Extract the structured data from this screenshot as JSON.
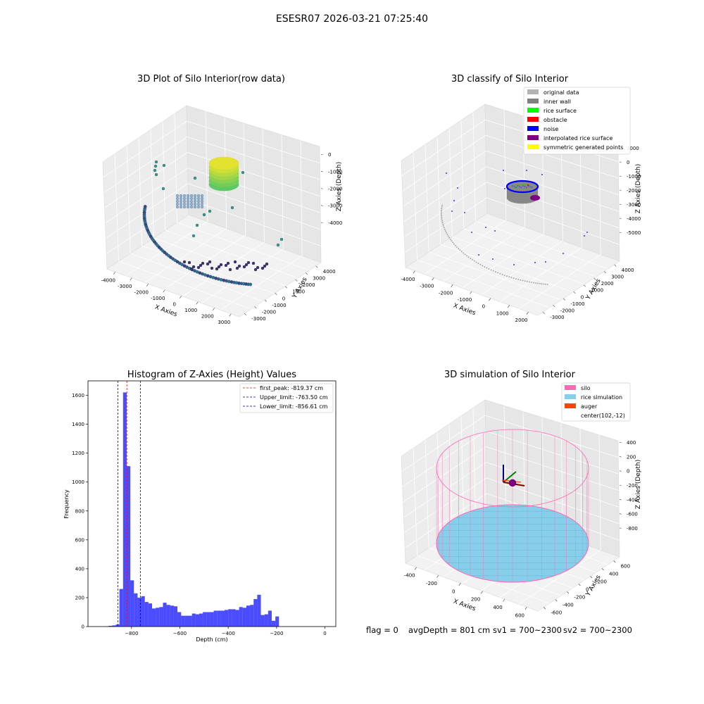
{
  "page": {
    "suptitle": "ESESR07 2026-03-21 07:25:40",
    "status": {
      "flag": "flag = 0",
      "avg_depth": "avgDepth = 801 cm",
      "sv1": "sv1 = 700~2300",
      "sv2": "sv2 = 700~2300"
    }
  },
  "chart_data": [
    {
      "type": "scatter3d",
      "title": "3D Plot of Silo Interior(row data)",
      "xlabel": "X Axies",
      "ylabel": "Y Axies",
      "zlabel": "Z Axies (Depth)",
      "x_ticks": [
        "-4000",
        "-3000",
        "-2000",
        "-1000",
        "0",
        "1000",
        "2000",
        "3000"
      ],
      "y_ticks": [
        "-3000",
        "-2000",
        "-1000",
        "0",
        "1000",
        "2000",
        "3000",
        "4000"
      ],
      "z_ticks": [
        "0",
        "-1000",
        "-2000",
        "-3000",
        "-4000"
      ],
      "colormap": "viridis",
      "grid": true
    },
    {
      "type": "scatter3d",
      "title": "3D classify of Silo Interior",
      "xlabel": "X Axies",
      "ylabel": "Y Axies",
      "zlabel": "Z Axies (Depth)",
      "x_ticks": [
        "-4000",
        "-3000",
        "-2000",
        "-1000",
        "0",
        "1000",
        "2000"
      ],
      "y_ticks": [
        "-3000",
        "-2000",
        "-1000",
        "0",
        "1000",
        "2000",
        "3000",
        "4000"
      ],
      "z_ticks": [
        "1000",
        "0",
        "-1000",
        "-2000",
        "-3000",
        "-4000",
        "-5000"
      ],
      "legend": [
        {
          "label": "original data",
          "color": "#b3b3b3"
        },
        {
          "label": "inner wall",
          "color": "#808080"
        },
        {
          "label": "rice surface",
          "color": "#00ff00"
        },
        {
          "label": "obstacle",
          "color": "#ff0000"
        },
        {
          "label": "noise",
          "color": "#0000ff"
        },
        {
          "label": "interpolated rice surface",
          "color": "#800080"
        },
        {
          "label": "symmetric generated points",
          "color": "#ffff00"
        }
      ],
      "legend_position": "top-right",
      "grid": true
    },
    {
      "type": "bar",
      "title": "Histogram of Z-Axies (Height) Values",
      "xlabel": "Depth (cm)",
      "ylabel": "Frequency",
      "xlim": [
        -980,
        45
      ],
      "ylim": [
        0,
        1700
      ],
      "x_ticks": [
        -800,
        -600,
        -400,
        -200,
        0
      ],
      "y_ticks": [
        0,
        200,
        400,
        600,
        800,
        1000,
        1200,
        1400,
        1600
      ],
      "bin_start": -910,
      "bin_width": 15,
      "values": [
        2,
        5,
        8,
        14,
        260,
        1620,
        1110,
        320,
        230,
        200,
        210,
        170,
        160,
        125,
        130,
        135,
        165,
        150,
        145,
        140,
        100,
        75,
        75,
        75,
        90,
        85,
        90,
        100,
        100,
        100,
        110,
        110,
        110,
        115,
        120,
        120,
        115,
        135,
        130,
        145,
        150,
        190,
        220,
        80,
        85,
        110,
        40,
        70
      ],
      "bar_color": "#0000ff",
      "vlines": [
        {
          "label": "first_peak: -819.37 cm",
          "x": -819.37,
          "color": "#ff0000"
        },
        {
          "label": "Upper_limit: -763.50 cm",
          "x": -763.5,
          "color": "#00008b"
        },
        {
          "label": "Lower_limit: -856.61 cm",
          "x": -856.61,
          "color": "#00008b"
        }
      ],
      "legend_position": "top-right",
      "grid": false
    },
    {
      "type": "surface3d",
      "title": "3D simulation of Silo Interior",
      "xlabel": "X Axies",
      "ylabel": "Y Axies",
      "zlabel": "Z Axies (Depth)",
      "x_ticks": [
        "-400",
        "-200",
        "0",
        "200",
        "400",
        "600"
      ],
      "y_ticks": [
        "-600",
        "-400",
        "-200",
        "0",
        "200",
        "400",
        "600"
      ],
      "z_ticks": [
        "400",
        "200",
        "0",
        "-200",
        "-400",
        "-600",
        "-800"
      ],
      "legend": [
        {
          "label": "silo",
          "color": "#ff69b4"
        },
        {
          "label": "rice simulation",
          "color": "#87ceeb"
        },
        {
          "label": "auger",
          "color": "#ff4500"
        },
        {
          "label": "center(102,-12)",
          "color": ""
        }
      ],
      "legend_position": "top-right",
      "grid": true
    }
  ]
}
